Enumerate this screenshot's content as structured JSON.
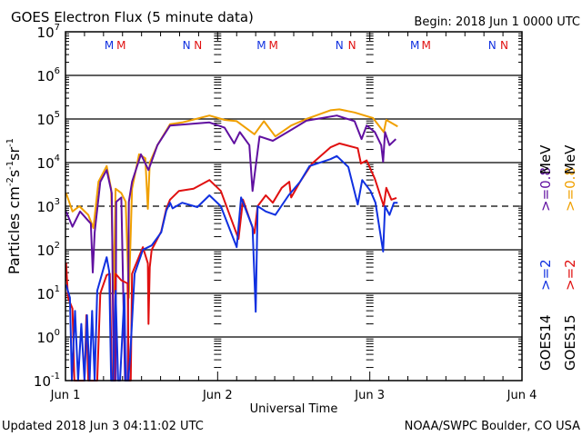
{
  "chart_data": {
    "type": "line",
    "title": "GOES Electron Flux (5 minute data)",
    "begin_label": "Begin: 2018 Jun 1 0000 UTC",
    "xlabel": "Universal Time",
    "ylabel_parts": {
      "base": "Particles cm",
      "e1": "-2",
      "s": "s",
      "e2": "-1",
      "sr": "sr",
      "e3": "-1"
    },
    "x_unit": "hours since 2018 Jun 1 0000 UTC",
    "xlim": [
      0,
      72
    ],
    "x_ticks": [
      {
        "value": 0,
        "label": "Jun 1"
      },
      {
        "value": 24,
        "label": "Jun 2"
      },
      {
        "value": 48,
        "label": "Jun 3"
      },
      {
        "value": 72,
        "label": "Jun 4"
      }
    ],
    "y_scale": "log",
    "y_unit": "log10 of flux",
    "ylim_log10": [
      -1,
      7
    ],
    "y_ticks": [
      {
        "exp": "7",
        "value": 7
      },
      {
        "exp": "6",
        "value": 6
      },
      {
        "exp": "5",
        "value": 5
      },
      {
        "exp": "4",
        "value": 4
      },
      {
        "exp": "3",
        "value": 3
      },
      {
        "exp": "2",
        "value": 2
      },
      {
        "exp": "1",
        "value": 1
      },
      {
        "exp": "0",
        "value": 0
      },
      {
        "exp": "-1",
        "value": -1
      }
    ],
    "y_tick_base": "10",
    "grid_lines_log10": [
      6,
      5,
      4,
      2,
      1,
      0
    ],
    "threshold_dashed_log10": 3,
    "markers": [
      {
        "label": "M",
        "hour": 6.9,
        "color": "#1030e0"
      },
      {
        "label": "M",
        "hour": 8.8,
        "color": "#e01010"
      },
      {
        "label": "N",
        "hour": 19.1,
        "color": "#1030e0"
      },
      {
        "label": "N",
        "hour": 20.9,
        "color": "#e01010"
      },
      {
        "label": "M",
        "hour": 30.9,
        "color": "#1030e0"
      },
      {
        "label": "M",
        "hour": 32.8,
        "color": "#e01010"
      },
      {
        "label": "N",
        "hour": 43.2,
        "color": "#1030e0"
      },
      {
        "label": "N",
        "hour": 45.2,
        "color": "#e01010"
      },
      {
        "label": "M",
        "hour": 55.1,
        "color": "#1030e0"
      },
      {
        "label": "M",
        "hour": 56.9,
        "color": "#e01010"
      },
      {
        "label": "N",
        "hour": 67.3,
        "color": "#1030e0"
      },
      {
        "label": "N",
        "hour": 69.2,
        "color": "#e01010"
      }
    ],
    "legend": {
      "placement": "right",
      "columns": [
        {
          "satellite": "GOES14",
          "e2_label": ">=2",
          "e2_color": "#1030e0",
          "e08_label": ">=0.8",
          "e08_color": "#6010a0",
          "unit": "MeV"
        },
        {
          "satellite": "GOES15",
          "e2_label": ">=2",
          "e2_color": "#e01010",
          "e08_label": ">=0.8",
          "e08_color": "#f0a000",
          "unit": "MeV"
        }
      ]
    },
    "series": [
      {
        "name": "GOES15 >=0.8 MeV",
        "color": "#f0a000",
        "points": [
          [
            0.1,
            3.3
          ],
          [
            1.1,
            2.88
          ],
          [
            2.2,
            3.0
          ],
          [
            3.6,
            2.8
          ],
          [
            4.4,
            2.5
          ],
          [
            5.2,
            3.56
          ],
          [
            6.5,
            3.92
          ],
          [
            7.2,
            3.4
          ],
          [
            7.6,
            1.0
          ],
          [
            7.9,
            3.4
          ],
          [
            8.8,
            3.3
          ],
          [
            9.5,
            3.1
          ],
          [
            10.0,
            0.9
          ],
          [
            10.5,
            3.4
          ],
          [
            11.6,
            4.19
          ],
          [
            12.6,
            4.1
          ],
          [
            13.0,
            2.94
          ],
          [
            13.3,
            4.0
          ],
          [
            14.5,
            4.4
          ],
          [
            16.5,
            4.88
          ],
          [
            18.4,
            4.92
          ],
          [
            22.7,
            5.08
          ],
          [
            25.1,
            4.98
          ],
          [
            27.0,
            4.95
          ],
          [
            29.8,
            4.65
          ],
          [
            31.3,
            4.95
          ],
          [
            33.1,
            4.6
          ],
          [
            35.6,
            4.85
          ],
          [
            38.0,
            5.0
          ],
          [
            41.8,
            5.2
          ],
          [
            43.2,
            5.22
          ],
          [
            45.6,
            5.15
          ],
          [
            48.5,
            5.02
          ],
          [
            50.2,
            4.7
          ],
          [
            50.6,
            4.98
          ],
          [
            52.4,
            4.83
          ]
        ]
      },
      {
        "name": "GOES14 >=0.8 MeV",
        "color": "#6010a0",
        "points": [
          [
            0.1,
            2.88
          ],
          [
            1.1,
            2.53
          ],
          [
            2.3,
            2.88
          ],
          [
            4.0,
            2.6
          ],
          [
            4.3,
            1.48
          ],
          [
            4.6,
            2.4
          ],
          [
            5.5,
            3.56
          ],
          [
            6.5,
            3.83
          ],
          [
            7.3,
            3.3
          ],
          [
            7.6,
            -1
          ],
          [
            7.9,
            -1
          ],
          [
            8.0,
            3.1
          ],
          [
            8.8,
            3.2
          ],
          [
            9.4,
            -1
          ],
          [
            9.8,
            -1
          ],
          [
            10.0,
            3.1
          ],
          [
            10.5,
            3.56
          ],
          [
            11.9,
            4.19
          ],
          [
            13.1,
            3.83
          ],
          [
            14.5,
            4.4
          ],
          [
            16.5,
            4.85
          ],
          [
            22.7,
            4.92
          ],
          [
            25.1,
            4.8
          ],
          [
            26.6,
            4.44
          ],
          [
            27.5,
            4.7
          ],
          [
            29.0,
            4.4
          ],
          [
            29.5,
            3.35
          ],
          [
            30.6,
            4.6
          ],
          [
            32.7,
            4.5
          ],
          [
            35.6,
            4.75
          ],
          [
            38.0,
            4.96
          ],
          [
            42.8,
            5.08
          ],
          [
            45.6,
            4.95
          ],
          [
            46.7,
            4.54
          ],
          [
            47.5,
            4.85
          ],
          [
            48.8,
            4.7
          ],
          [
            49.8,
            4.4
          ],
          [
            50.1,
            4.02
          ],
          [
            50.4,
            4.7
          ],
          [
            51.1,
            4.4
          ],
          [
            52.1,
            4.54
          ]
        ]
      },
      {
        "name": "GOES15 >=2 MeV",
        "color": "#e01010",
        "points": [
          [
            0.1,
            1.7
          ],
          [
            0.4,
            0.9
          ],
          [
            1.1,
            0.65
          ],
          [
            1.4,
            -1
          ],
          [
            3.0,
            -1
          ],
          [
            3.3,
            0.5
          ],
          [
            3.6,
            -1
          ],
          [
            5.0,
            -1
          ],
          [
            5.5,
            1.0
          ],
          [
            6.5,
            1.42
          ],
          [
            7.0,
            1.45
          ],
          [
            7.3,
            -1
          ],
          [
            7.6,
            -1
          ],
          [
            7.9,
            1.45
          ],
          [
            8.8,
            1.3
          ],
          [
            9.8,
            1.23
          ],
          [
            10.0,
            -1
          ],
          [
            10.3,
            -1
          ],
          [
            10.5,
            1.45
          ],
          [
            12.2,
            2.06
          ],
          [
            13.0,
            1.69
          ],
          [
            13.1,
            0.3
          ],
          [
            13.3,
            1.6
          ],
          [
            13.6,
            2.0
          ],
          [
            15.1,
            2.42
          ],
          [
            15.9,
            2.94
          ],
          [
            16.5,
            3.15
          ],
          [
            17.9,
            3.35
          ],
          [
            20.2,
            3.4
          ],
          [
            22.7,
            3.6
          ],
          [
            24.5,
            3.35
          ],
          [
            27.3,
            2.25
          ],
          [
            28.0,
            3.15
          ],
          [
            29.8,
            2.38
          ],
          [
            30.3,
            3.0
          ],
          [
            31.6,
            3.25
          ],
          [
            32.7,
            3.08
          ],
          [
            34.1,
            3.42
          ],
          [
            35.3,
            3.56
          ],
          [
            35.6,
            3.2
          ],
          [
            37.0,
            3.56
          ],
          [
            38.9,
            3.98
          ],
          [
            41.8,
            4.35
          ],
          [
            43.2,
            4.44
          ],
          [
            46.1,
            4.33
          ],
          [
            46.6,
            3.98
          ],
          [
            47.5,
            4.05
          ],
          [
            48.8,
            3.63
          ],
          [
            50.2,
            3.0
          ],
          [
            50.6,
            3.42
          ],
          [
            51.4,
            3.15
          ],
          [
            52.2,
            3.19
          ]
        ]
      },
      {
        "name": "GOES14 >=2 MeV",
        "color": "#1030e0",
        "points": [
          [
            0.1,
            1.2
          ],
          [
            0.7,
            0.9
          ],
          [
            1.0,
            -1
          ],
          [
            1.5,
            0.6
          ],
          [
            2.0,
            -1
          ],
          [
            2.5,
            0.3
          ],
          [
            3.0,
            -1
          ],
          [
            3.4,
            0.5
          ],
          [
            3.8,
            -1
          ],
          [
            4.2,
            0.6
          ],
          [
            4.6,
            -1
          ],
          [
            5.0,
            1.06
          ],
          [
            6.5,
            1.83
          ],
          [
            6.9,
            1.5
          ],
          [
            7.2,
            -1
          ],
          [
            7.5,
            -1
          ],
          [
            7.9,
            1.06
          ],
          [
            8.3,
            -1
          ],
          [
            8.6,
            -1
          ],
          [
            9.3,
            1.0
          ],
          [
            9.5,
            -1
          ],
          [
            9.9,
            -1
          ],
          [
            10.2,
            -0.46
          ],
          [
            10.9,
            1.45
          ],
          [
            12.2,
            2.0
          ],
          [
            13.6,
            2.1
          ],
          [
            15.1,
            2.4
          ],
          [
            15.9,
            2.9
          ],
          [
            16.5,
            3.08
          ],
          [
            16.9,
            2.95
          ],
          [
            18.4,
            3.08
          ],
          [
            20.8,
            2.98
          ],
          [
            22.7,
            3.25
          ],
          [
            24.5,
            3.0
          ],
          [
            27.0,
            2.06
          ],
          [
            27.7,
            3.2
          ],
          [
            29.5,
            2.52
          ],
          [
            30.0,
            0.58
          ],
          [
            30.3,
            3.0
          ],
          [
            31.6,
            2.88
          ],
          [
            33.1,
            2.8
          ],
          [
            35.2,
            3.25
          ],
          [
            37.0,
            3.56
          ],
          [
            38.5,
            3.92
          ],
          [
            41.8,
            4.08
          ],
          [
            42.8,
            4.15
          ],
          [
            44.6,
            3.9
          ],
          [
            46.1,
            3.04
          ],
          [
            46.8,
            3.6
          ],
          [
            48.1,
            3.35
          ],
          [
            48.9,
            3.08
          ],
          [
            50.1,
            1.96
          ],
          [
            50.4,
            3.0
          ],
          [
            51.1,
            2.8
          ],
          [
            51.8,
            3.08
          ],
          [
            52.4,
            3.08
          ]
        ]
      }
    ]
  },
  "footer": {
    "updated": "Updated 2018 Jun  3 04:11:02 UTC",
    "source": "NOAA/SWPC Boulder, CO USA"
  }
}
